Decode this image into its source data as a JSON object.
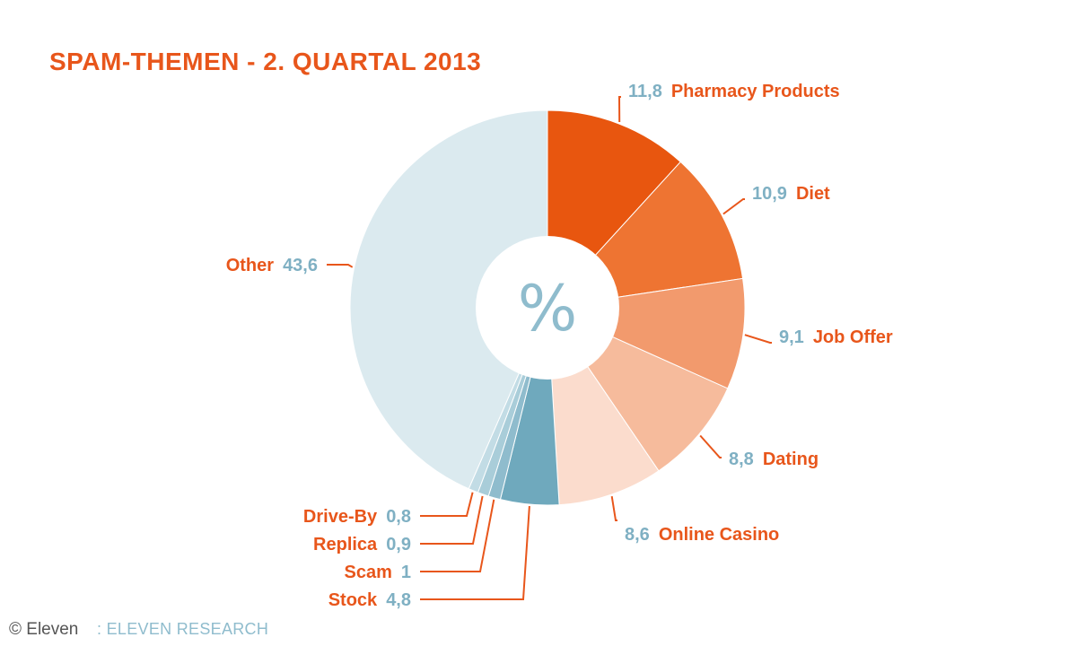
{
  "chart_data": {
    "type": "pie",
    "title": "SPAM-THEMEN - 2. QUARTAL 2013",
    "center_label": "%",
    "unit": "%",
    "donut": true,
    "slices": [
      {
        "label": "Pharmacy Products",
        "value_text": "11,8",
        "value": 11.8,
        "color": "#e8560f"
      },
      {
        "label": "Diet",
        "value_text": "10,9",
        "value": 10.9,
        "color": "#ee7432"
      },
      {
        "label": "Job Offer",
        "value_text": "9,1",
        "value": 9.1,
        "color": "#f29a6d"
      },
      {
        "label": "Dating",
        "value_text": "8,8",
        "value": 8.8,
        "color": "#f6bb9c"
      },
      {
        "label": "Online Casino",
        "value_text": "8,6",
        "value": 8.6,
        "color": "#fbdccd"
      },
      {
        "label": "Stock",
        "value_text": "4,8",
        "value": 4.8,
        "color": "#6fa9bd"
      },
      {
        "label": "Scam",
        "value_text": "1",
        "value": 1.0,
        "color": "#8fbccd"
      },
      {
        "label": "Replica",
        "value_text": "0,9",
        "value": 0.9,
        "color": "#a9cdd9"
      },
      {
        "label": "Drive-By",
        "value_text": "0,8",
        "value": 0.8,
        "color": "#c2dce5"
      },
      {
        "label": "Other",
        "value_text": "43,6",
        "value": 43.6,
        "color": "#dbeaef"
      }
    ]
  },
  "credit": {
    "copyright": "© Eleven",
    "source": ": ELEVEN RESEARCH"
  }
}
